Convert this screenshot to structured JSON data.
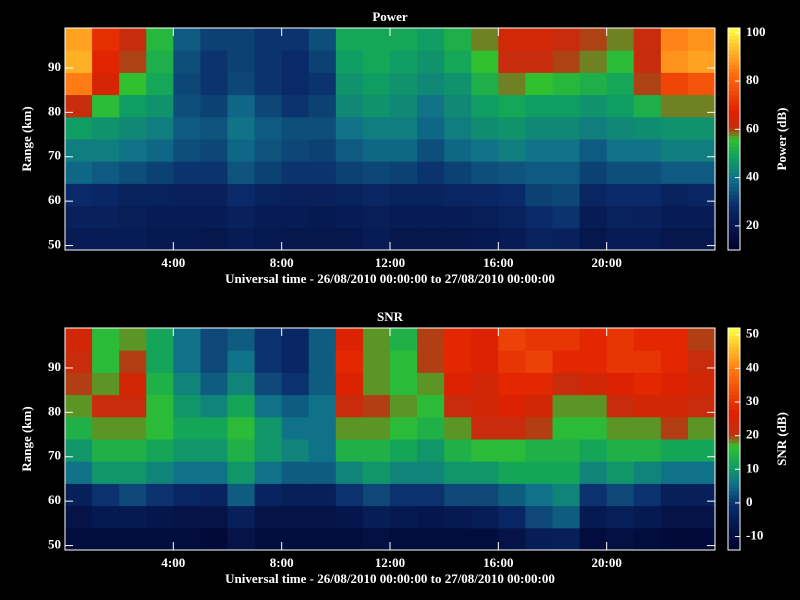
{
  "chart_data": [
    {
      "type": "heatmap",
      "title": "Power",
      "xlabel": "Universal time - 26/08/2010 00:00:00 to 27/08/2010 00:00:00",
      "ylabel": "Range (km)",
      "colorbar_label": "Power (dB)",
      "xlim": [
        0,
        24
      ],
      "xticks": [
        {
          "value": 4,
          "label": "4:00"
        },
        {
          "value": 8,
          "label": "8:00"
        },
        {
          "value": 12,
          "label": "12:00"
        },
        {
          "value": 16,
          "label": "16:00"
        },
        {
          "value": 20,
          "label": "20:00"
        }
      ],
      "ylim": [
        49,
        99
      ],
      "yticks": [
        50,
        60,
        70,
        80,
        90
      ],
      "zlim": [
        10,
        102
      ],
      "zticks": [
        20,
        40,
        60,
        80,
        100
      ],
      "colorscale": [
        [
          0,
          "#00002a"
        ],
        [
          0.2,
          "#0a2a6a"
        ],
        [
          0.32,
          "#10708a"
        ],
        [
          0.42,
          "#10a060"
        ],
        [
          0.5,
          "#30c030"
        ],
        [
          0.55,
          "#c03010"
        ],
        [
          0.62,
          "#e02000"
        ],
        [
          0.8,
          "#ff7010"
        ],
        [
          1,
          "#ffff40"
        ]
      ],
      "x": [
        0.5,
        1.5,
        2.5,
        3.5,
        4.5,
        5.5,
        6.5,
        7.5,
        8.5,
        9.5,
        10.5,
        11.5,
        12.5,
        13.5,
        14.5,
        15.5,
        16.5,
        17.5,
        18.5,
        19.5,
        20.5,
        21.5,
        22.5,
        23.5
      ],
      "y": [
        51.5,
        56.5,
        61.5,
        66.5,
        71.5,
        76.5,
        81.5,
        86.5,
        91.5,
        96.5
      ],
      "z": [
        [
          22,
          22,
          22,
          21,
          21,
          20,
          22,
          21,
          20,
          20,
          20,
          22,
          20,
          20,
          20,
          21,
          22,
          25,
          24,
          20,
          22,
          22,
          20,
          20
        ],
        [
          24,
          24,
          23,
          22,
          22,
          22,
          24,
          22,
          22,
          21,
          22,
          23,
          22,
          22,
          22,
          23,
          25,
          28,
          30,
          22,
          25,
          24,
          22,
          22
        ],
        [
          28,
          27,
          25,
          25,
          24,
          24,
          28,
          25,
          24,
          24,
          25,
          26,
          25,
          25,
          26,
          27,
          28,
          32,
          33,
          26,
          28,
          28,
          25,
          26
        ],
        [
          38,
          36,
          34,
          32,
          30,
          30,
          35,
          32,
          30,
          30,
          32,
          33,
          32,
          30,
          32,
          34,
          35,
          36,
          36,
          32,
          34,
          34,
          36,
          36
        ],
        [
          42,
          42,
          40,
          38,
          34,
          33,
          38,
          35,
          33,
          32,
          36,
          38,
          38,
          34,
          38,
          40,
          42,
          40,
          40,
          36,
          40,
          40,
          42,
          42
        ],
        [
          48,
          46,
          44,
          42,
          36,
          35,
          40,
          36,
          34,
          34,
          40,
          42,
          42,
          38,
          42,
          45,
          46,
          44,
          44,
          42,
          44,
          45,
          46,
          46
        ],
        [
          62,
          55,
          48,
          46,
          34,
          32,
          38,
          33,
          30,
          32,
          44,
          46,
          44,
          40,
          44,
          48,
          50,
          48,
          48,
          46,
          48,
          52,
          58,
          58
        ],
        [
          85,
          65,
          56,
          50,
          33,
          30,
          33,
          30,
          28,
          30,
          46,
          48,
          46,
          44,
          46,
          52,
          58,
          56,
          54,
          52,
          50,
          60,
          75,
          78
        ],
        [
          92,
          68,
          60,
          52,
          34,
          30,
          32,
          30,
          28,
          32,
          48,
          50,
          48,
          46,
          50,
          56,
          62,
          62,
          60,
          58,
          55,
          62,
          88,
          90
        ],
        [
          90,
          70,
          62,
          54,
          36,
          32,
          32,
          30,
          30,
          34,
          50,
          50,
          50,
          48,
          52,
          58,
          64,
          64,
          62,
          60,
          58,
          62,
          86,
          88
        ]
      ]
    },
    {
      "type": "heatmap",
      "title": "SNR",
      "xlabel": "Universal time - 26/08/2010 00:00:00 to 27/08/2010 00:00:00",
      "ylabel": "Range (km)",
      "colorbar_label": "SNR (dB)",
      "xlim": [
        0,
        24
      ],
      "xticks": [
        {
          "value": 4,
          "label": "4:00"
        },
        {
          "value": 8,
          "label": "8:00"
        },
        {
          "value": 12,
          "label": "12:00"
        },
        {
          "value": 16,
          "label": "16:00"
        },
        {
          "value": 20,
          "label": "20:00"
        }
      ],
      "ylim": [
        49,
        99
      ],
      "yticks": [
        50,
        60,
        70,
        80,
        90
      ],
      "zlim": [
        -14,
        52
      ],
      "zticks": [
        -10,
        0,
        10,
        20,
        30,
        40,
        50
      ],
      "colorscale": [
        [
          0,
          "#00002a"
        ],
        [
          0.2,
          "#0a2a6a"
        ],
        [
          0.3,
          "#10708a"
        ],
        [
          0.38,
          "#10a060"
        ],
        [
          0.47,
          "#30c030"
        ],
        [
          0.52,
          "#c03010"
        ],
        [
          0.62,
          "#e02000"
        ],
        [
          0.8,
          "#ff7010"
        ],
        [
          1,
          "#ffff40"
        ]
      ],
      "x": [
        0.5,
        1.5,
        2.5,
        3.5,
        4.5,
        5.5,
        6.5,
        7.5,
        8.5,
        9.5,
        10.5,
        11.5,
        12.5,
        13.5,
        14.5,
        15.5,
        16.5,
        17.5,
        18.5,
        19.5,
        20.5,
        21.5,
        22.5,
        23.5
      ],
      "y": [
        51.5,
        56.5,
        61.5,
        66.5,
        71.5,
        76.5,
        81.5,
        86.5,
        91.5,
        96.5
      ],
      "z": [
        [
          -10,
          -10,
          -10,
          -10,
          -10,
          -11,
          -8,
          -10,
          -10,
          -10,
          -10,
          -9,
          -10,
          -10,
          -10,
          -10,
          -8,
          -5,
          -4,
          -10,
          -9,
          -10,
          -11,
          -11
        ],
        [
          -8,
          -6,
          -6,
          -7,
          -8,
          -8,
          -4,
          -8,
          -8,
          -8,
          -7,
          -5,
          -6,
          -7,
          -6,
          -5,
          -2,
          2,
          4,
          -6,
          -4,
          -6,
          -8,
          -8
        ],
        [
          -4,
          0,
          2,
          0,
          -2,
          -3,
          4,
          -3,
          -4,
          -4,
          0,
          2,
          0,
          0,
          2,
          2,
          4,
          6,
          8,
          0,
          2,
          0,
          -4,
          -4
        ],
        [
          6,
          10,
          10,
          8,
          6,
          6,
          10,
          6,
          4,
          4,
          8,
          10,
          8,
          8,
          10,
          10,
          12,
          12,
          12,
          8,
          10,
          8,
          6,
          6
        ],
        [
          10,
          14,
          14,
          12,
          10,
          10,
          14,
          10,
          8,
          6,
          14,
          14,
          12,
          10,
          14,
          16,
          16,
          14,
          14,
          12,
          14,
          14,
          12,
          12
        ],
        [
          14,
          18,
          18,
          16,
          12,
          12,
          16,
          10,
          6,
          6,
          18,
          18,
          16,
          14,
          18,
          22,
          22,
          20,
          16,
          16,
          18,
          18,
          20,
          18
        ],
        [
          18,
          22,
          22,
          16,
          10,
          8,
          12,
          6,
          4,
          6,
          22,
          20,
          18,
          16,
          22,
          24,
          26,
          24,
          18,
          18,
          22,
          24,
          24,
          22
        ],
        [
          20,
          18,
          24,
          14,
          8,
          4,
          8,
          2,
          0,
          4,
          26,
          18,
          16,
          18,
          26,
          24,
          28,
          28,
          22,
          24,
          26,
          28,
          26,
          24
        ],
        [
          22,
          16,
          20,
          12,
          6,
          2,
          6,
          0,
          -2,
          4,
          28,
          18,
          16,
          20,
          28,
          26,
          30,
          32,
          28,
          28,
          30,
          30,
          28,
          22
        ],
        [
          24,
          16,
          18,
          12,
          6,
          2,
          4,
          0,
          -2,
          4,
          26,
          18,
          14,
          20,
          28,
          26,
          32,
          30,
          30,
          28,
          30,
          28,
          28,
          20
        ]
      ]
    }
  ]
}
